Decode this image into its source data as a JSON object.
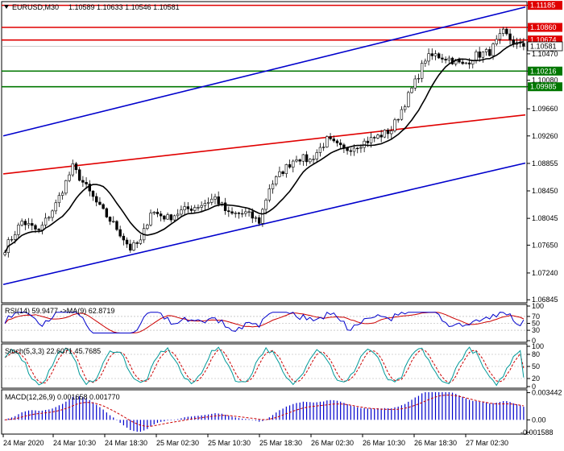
{
  "header": {
    "symbol": "EURUSD,M30",
    "ohlc": "1.10589 1.10633 1.10546 1.10581"
  },
  "panels": {
    "rsi_label": "RSI(14) 59.9477 ->MA(9) 62.8719",
    "stoch_label": "Stoch(5,3,3) 22.6071 45.7685",
    "macd_label": "MACD(12,26,9) 0.001658 0.001770"
  },
  "colors": {
    "candle": "#000000",
    "ma": "#000000",
    "channel": "#0000cc",
    "trend": "#e00000",
    "resistance": "#e00000",
    "support": "#007700",
    "price_box": "#000000",
    "rsi_main": "#0000cc",
    "rsi_signal": "#cc0000",
    "stoch_main": "#009999",
    "stoch_signal": "#cc0000",
    "macd_hist": "#0000cc",
    "macd_signal": "#cc0000"
  },
  "chart_data": {
    "type": "candlestick",
    "price_ticks": [
      "1.11185",
      "1.10860",
      "1.10674",
      "1.10581",
      "1.10470",
      "1.10216",
      "1.10080",
      "1.09985",
      "1.09660",
      "1.09260",
      "1.08855",
      "1.08450",
      "1.08045",
      "1.07650",
      "1.07240",
      "1.06845"
    ],
    "price_range": [
      1.068,
      1.1124
    ],
    "horizontal_levels": [
      {
        "price": 1.11185,
        "kind": "resistance",
        "label": "1.11185"
      },
      {
        "price": 1.1086,
        "kind": "resistance",
        "label": "1.10860"
      },
      {
        "price": 1.10674,
        "kind": "resistance",
        "label": "1.10674"
      },
      {
        "price": 1.10216,
        "kind": "support",
        "label": "1.10216"
      },
      {
        "price": 1.09985,
        "kind": "support",
        "label": "1.09985"
      }
    ],
    "current_price": {
      "price": 1.10581,
      "label": "1.10581"
    },
    "time_labels": [
      "24 Mar 2020",
      "24 Mar 10:30",
      "24 Mar 18:30",
      "25 Mar 02:30",
      "25 Mar 10:30",
      "25 Mar 18:30",
      "26 Mar 02:30",
      "26 Mar 10:30",
      "26 Mar 18:30",
      "27 Mar 02:30"
    ],
    "trend_lines": [
      {
        "kind": "channel-upper",
        "from": [
          0,
          1.0926
        ],
        "to": [
          154,
          1.1116
        ]
      },
      {
        "kind": "channel-lower",
        "from": [
          0,
          1.0707
        ],
        "to": [
          154,
          1.0886
        ]
      },
      {
        "kind": "trend",
        "from": [
          0,
          1.087
        ],
        "to": [
          154,
          1.0957
        ]
      }
    ],
    "close_path": [
      [
        0,
        1.076
      ],
      [
        5,
        1.08
      ],
      [
        10,
        1.0785
      ],
      [
        15,
        1.0825
      ],
      [
        20,
        1.088
      ],
      [
        24,
        1.085
      ],
      [
        28,
        1.082
      ],
      [
        33,
        1.079
      ],
      [
        37,
        1.076
      ],
      [
        40,
        1.077
      ],
      [
        43,
        1.0815
      ],
      [
        48,
        1.0805
      ],
      [
        52,
        1.0815
      ],
      [
        58,
        1.0825
      ],
      [
        62,
        1.0835
      ],
      [
        66,
        1.081
      ],
      [
        71,
        1.0812
      ],
      [
        75,
        1.08
      ],
      [
        78,
        1.085
      ],
      [
        82,
        1.0875
      ],
      [
        86,
        1.0895
      ],
      [
        90,
        1.089
      ],
      [
        95,
        1.092
      ],
      [
        100,
        1.0905
      ],
      [
        105,
        1.0915
      ],
      [
        110,
        1.0925
      ],
      [
        114,
        1.0935
      ],
      [
        118,
        1.0975
      ],
      [
        121,
        1.1005
      ],
      [
        124,
        1.104
      ],
      [
        127,
        1.1045
      ],
      [
        131,
        1.104
      ],
      [
        135,
        1.103
      ],
      [
        139,
        1.1045
      ],
      [
        143,
        1.105
      ],
      [
        147,
        1.1078
      ],
      [
        150,
        1.1064
      ],
      [
        152,
        1.1058
      ]
    ],
    "rsi": {
      "levels": [
        100,
        70,
        50,
        30,
        0
      ],
      "ticks": [
        "100",
        "70",
        "50",
        "30",
        "0"
      ],
      "value": 59.9477,
      "ma": 62.8719
    },
    "stoch": {
      "levels": [
        100,
        80,
        50,
        20,
        0
      ],
      "ticks": [
        "100",
        "80",
        "50",
        "20",
        "0"
      ],
      "main": 22.6071,
      "signal": 45.7685
    },
    "macd": {
      "ticks": [
        "0.003442",
        "0.00",
        "-0.001588"
      ],
      "range": [
        -0.0016,
        0.0035
      ],
      "main": 0.001658,
      "signal": 0.00177
    }
  }
}
